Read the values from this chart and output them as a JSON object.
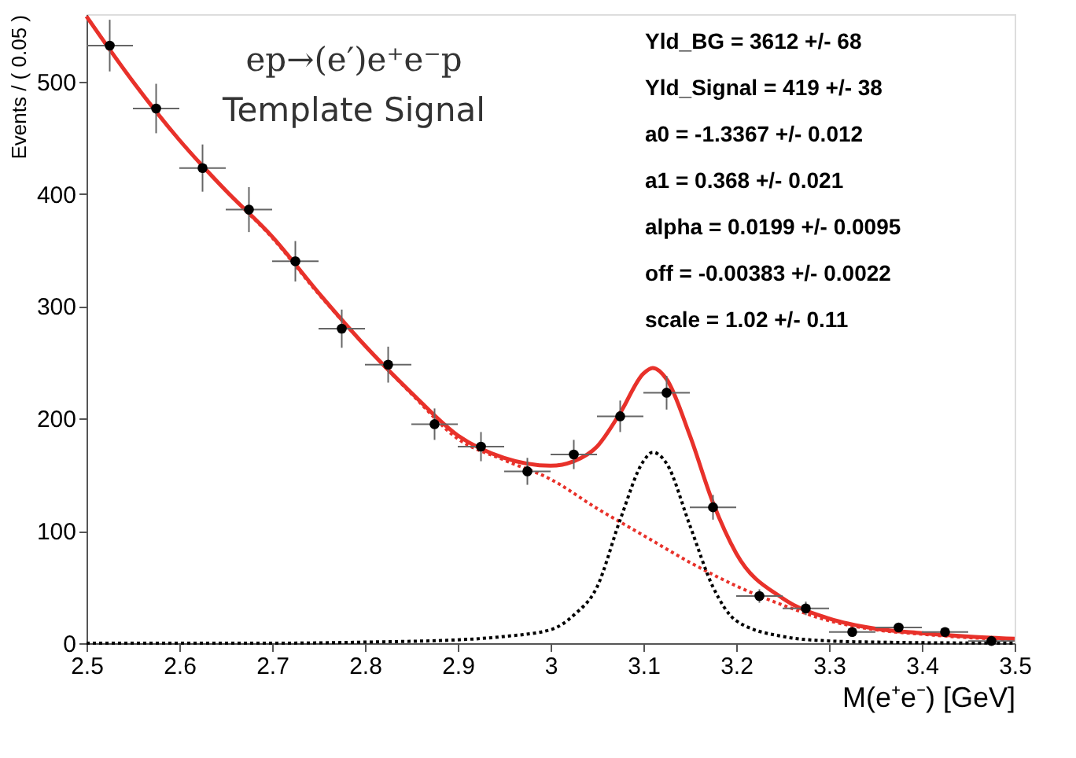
{
  "chart_data": {
    "type": "scatter",
    "xlabel": "M(e⁺e⁻) [GeV]",
    "ylabel": "Events / ( 0.05 )",
    "xlim": [
      2.5,
      3.5
    ],
    "xticks": [
      2.5,
      2.6,
      2.7,
      2.8,
      2.9,
      3,
      3.1,
      3.2,
      3.3,
      3.4,
      3.5
    ],
    "ylim": [
      0,
      560
    ],
    "yticks": [
      0,
      100,
      200,
      300,
      400,
      500
    ],
    "grid": false,
    "x": [
      2.525,
      2.575,
      2.625,
      2.675,
      2.725,
      2.775,
      2.825,
      2.875,
      2.925,
      2.975,
      3.025,
      3.075,
      3.125,
      3.175,
      3.225,
      3.275,
      3.325,
      3.375,
      3.425,
      3.475
    ],
    "series": [
      {
        "color": "#000000",
        "marker": "circle",
        "values": [
          532,
          476,
          423,
          386,
          340,
          280,
          248,
          195,
          175,
          153,
          168,
          202,
          223,
          121,
          42,
          31,
          10,
          14,
          10,
          2
        ],
        "errors": [
          23,
          22,
          21,
          20,
          18,
          17,
          16,
          14,
          13,
          12,
          13,
          14,
          15,
          11,
          6,
          6,
          3,
          4,
          3,
          1
        ],
        "xerrors": [
          0.025,
          0.025,
          0.025,
          0.025,
          0.025,
          0.025,
          0.025,
          0.025,
          0.025,
          0.025,
          0.025,
          0.025,
          0.025,
          0.025,
          0.025,
          0.025,
          0.025,
          0.025,
          0.025,
          0.025
        ]
      },
      {
        "type": "line",
        "color": "#e8312a",
        "line_style": "dotted",
        "x": [
          2.5,
          2.55,
          2.6,
          2.65,
          2.7,
          2.75,
          2.8,
          2.85,
          2.9,
          2.95,
          3.0,
          3.05,
          3.1,
          3.15,
          3.2,
          3.25,
          3.3,
          3.35,
          3.4,
          3.45,
          3.5
        ],
        "values": [
          558,
          500,
          448,
          403,
          361,
          311,
          265,
          222,
          182,
          163,
          146,
          120,
          96,
          72,
          51,
          34,
          20,
          12,
          8,
          5,
          3
        ]
      },
      {
        "type": "line",
        "color": "#000000",
        "line_style": "dotted",
        "x": [
          2.5,
          2.7,
          2.8,
          2.9,
          2.95,
          3.0,
          3.025,
          3.05,
          3.075,
          3.1,
          3.11,
          3.125,
          3.15,
          3.175,
          3.2,
          3.25,
          3.3,
          3.35,
          3.5
        ],
        "values": [
          0,
          0,
          1,
          3,
          6,
          12,
          25,
          50,
          110,
          162,
          170,
          160,
          105,
          50,
          20,
          6,
          2,
          1,
          0
        ]
      },
      {
        "type": "line",
        "color": "#e8312a",
        "line_style": "solid",
        "x": [
          2.5,
          2.55,
          2.6,
          2.65,
          2.7,
          2.75,
          2.8,
          2.85,
          2.9,
          2.95,
          3.0,
          3.025,
          3.05,
          3.075,
          3.1,
          3.11,
          3.125,
          3.15,
          3.175,
          3.2,
          3.25,
          3.3,
          3.35,
          3.4,
          3.45,
          3.5
        ],
        "values": [
          558,
          500,
          448,
          403,
          362,
          312,
          265,
          223,
          185,
          165,
          158,
          162,
          175,
          205,
          240,
          245,
          235,
          185,
          125,
          80,
          40,
          22,
          13,
          9,
          6,
          4
        ]
      }
    ],
    "annotations": [
      "ep→(e′)e⁺e⁻p",
      "Template Signal",
      "Yld_BG = 3612 +/- 68",
      "Yld_Signal = 419 +/- 38",
      "a0 = -1.3367 +/- 0.012",
      "a1 = 0.368 +/- 0.021",
      "alpha = 0.0199 +/- 0.0095",
      "off = -0.00383 +/- 0.0022",
      "scale = 1.02 +/- 0.11"
    ]
  }
}
